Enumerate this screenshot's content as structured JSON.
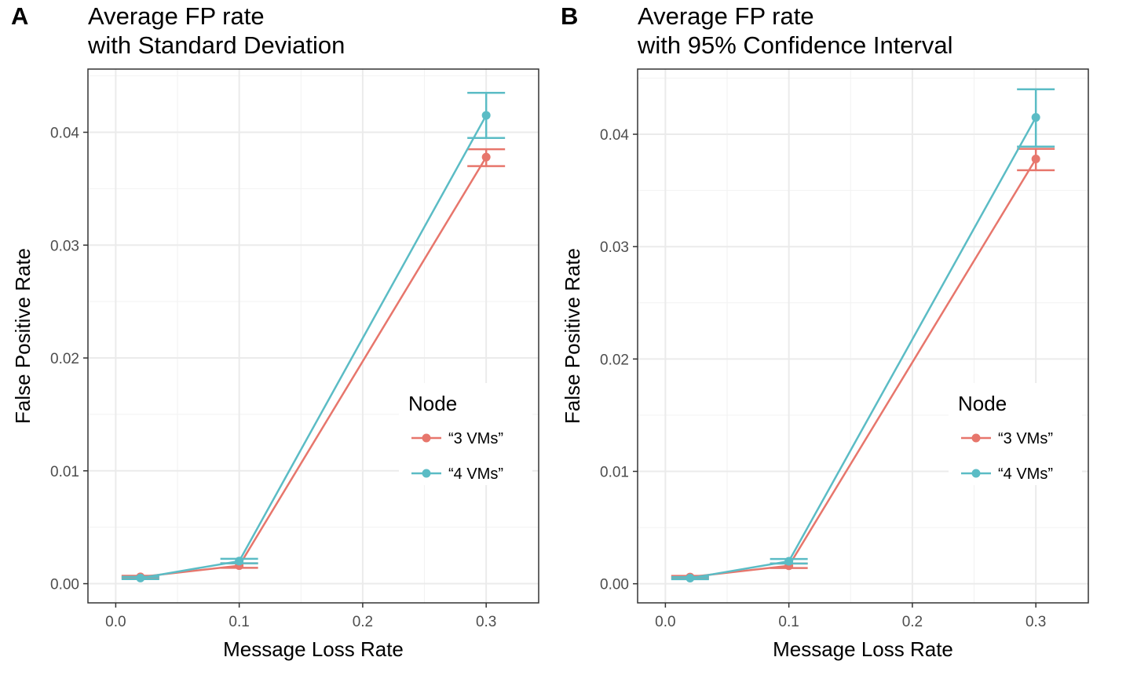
{
  "chart_data": [
    {
      "type": "line",
      "panel_label": "A",
      "title_lines": [
        "Average FP rate",
        "with Standard Deviation"
      ],
      "xlabel": "Message Loss Rate",
      "ylabel": "False Positive Rate",
      "x_ticks": [
        0.0,
        0.1,
        0.2,
        0.3
      ],
      "x_tick_labels": [
        "0.0",
        "0.1",
        "0.2",
        "0.3"
      ],
      "y_ticks": [
        0.0,
        0.01,
        0.02,
        0.03,
        0.04
      ],
      "y_tick_labels": [
        "0.00",
        "0.01",
        "0.02",
        "0.03",
        "0.04"
      ],
      "xlim": [
        -0.0225,
        0.3425
      ],
      "ylim": [
        -0.0017,
        0.0456
      ],
      "grid": true,
      "legend": {
        "title": "Node",
        "placement": "bottom-right"
      },
      "series": [
        {
          "name": "“3 VMs”",
          "color": "#E7766C",
          "x": [
            0.02,
            0.1,
            0.3
          ],
          "y": [
            0.0006,
            0.0016,
            0.0378
          ],
          "err_low": [
            0.0005,
            0.0014,
            0.037
          ],
          "err_high": [
            0.0007,
            0.0018,
            0.0385
          ]
        },
        {
          "name": "“4 VMs”",
          "color": "#5BBCC5",
          "x": [
            0.02,
            0.1,
            0.3
          ],
          "y": [
            0.0005,
            0.002,
            0.0415
          ],
          "err_low": [
            0.0004,
            0.0018,
            0.0395
          ],
          "err_high": [
            0.0006,
            0.0022,
            0.0435
          ]
        }
      ]
    },
    {
      "type": "line",
      "panel_label": "B",
      "title_lines": [
        "Average FP rate",
        "with 95% Confidence Interval"
      ],
      "xlabel": "Message Loss Rate",
      "ylabel": "False Positive Rate",
      "x_ticks": [
        0.0,
        0.1,
        0.2,
        0.3
      ],
      "x_tick_labels": [
        "0.0",
        "0.1",
        "0.2",
        "0.3"
      ],
      "y_ticks": [
        0.0,
        0.01,
        0.02,
        0.03,
        0.04
      ],
      "y_tick_labels": [
        "0.00",
        "0.01",
        "0.02",
        "0.03",
        "0.04"
      ],
      "xlim": [
        -0.0225,
        0.3425
      ],
      "ylim": [
        -0.0017,
        0.0458
      ],
      "grid": true,
      "legend": {
        "title": "Node",
        "placement": "bottom-right"
      },
      "series": [
        {
          "name": "“3 VMs”",
          "color": "#E7766C",
          "x": [
            0.02,
            0.1,
            0.3
          ],
          "y": [
            0.0006,
            0.0016,
            0.0378
          ],
          "err_low": [
            0.0005,
            0.0014,
            0.0368
          ],
          "err_high": [
            0.0007,
            0.0018,
            0.0387
          ]
        },
        {
          "name": "“4 VMs”",
          "color": "#5BBCC5",
          "x": [
            0.02,
            0.1,
            0.3
          ],
          "y": [
            0.0005,
            0.002,
            0.0415
          ],
          "err_low": [
            0.0004,
            0.0018,
            0.0389
          ],
          "err_high": [
            0.0006,
            0.0022,
            0.044
          ]
        }
      ]
    }
  ]
}
